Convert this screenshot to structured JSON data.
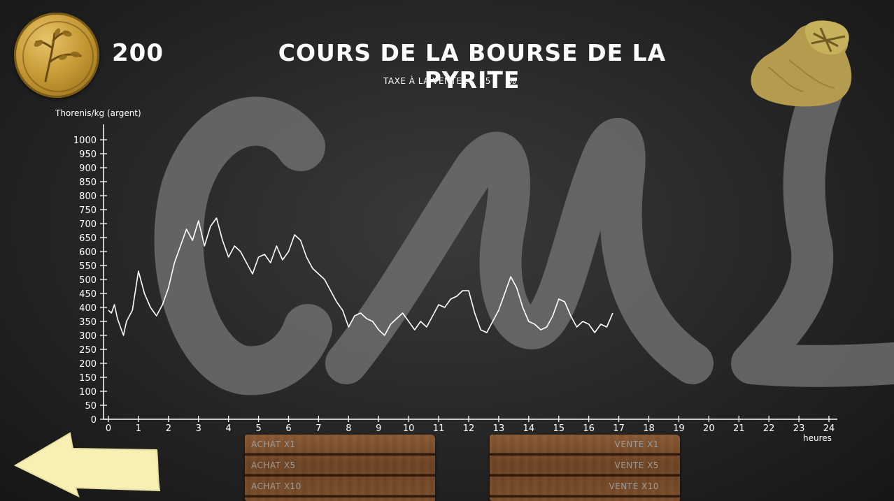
{
  "header": {
    "money": "200",
    "title": "Cours de la bourse de la Pyrite",
    "tax_label": "Taxe à la vente :",
    "tax_value": "35",
    "tax_unit": "%"
  },
  "icons": {
    "coin": "silver-coin-icon",
    "bag": "gold-sack-icon",
    "back": "back-arrow-icon"
  },
  "buy_buttons": [
    "Achat x1",
    "Achat x5",
    "Achat x10"
  ],
  "sell_buttons": [
    "Vente x1",
    "Vente x5",
    "Vente x10"
  ],
  "colors": {
    "background": "#262626",
    "chalk": "#6d6d6d",
    "line": "#ffffff",
    "arrow": "#f7f0b5",
    "coin": "#c79b36",
    "wood": "#7b4e2b"
  },
  "chart_data": {
    "type": "line",
    "ylabel": "Thorenis/kg (argent)",
    "xlabel": "heures",
    "xlim": [
      0,
      24
    ],
    "ylim": [
      0,
      1000
    ],
    "x_ticks": [
      0,
      1,
      2,
      3,
      4,
      5,
      6,
      7,
      8,
      9,
      10,
      11,
      12,
      13,
      14,
      15,
      16,
      17,
      18,
      19,
      20,
      21,
      22,
      23,
      24
    ],
    "y_ticks": [
      0,
      50,
      100,
      150,
      200,
      250,
      300,
      350,
      400,
      450,
      500,
      550,
      600,
      650,
      700,
      750,
      800,
      850,
      900,
      950,
      1000
    ],
    "series": [
      {
        "x": [
          0,
          0.1,
          0.2,
          0.3,
          0.5,
          0.6,
          0.8,
          1.0,
          1.2,
          1.4,
          1.6,
          1.8,
          2.0,
          2.2,
          2.4,
          2.6,
          2.8,
          3.0,
          3.2,
          3.4,
          3.6,
          3.8,
          4.0,
          4.2,
          4.4,
          4.6,
          4.8,
          5.0,
          5.2,
          5.4,
          5.6,
          5.8,
          6.0,
          6.2,
          6.4,
          6.6,
          6.8,
          7.0,
          7.2,
          7.4,
          7.6,
          7.8,
          8.0,
          8.2,
          8.4,
          8.6,
          8.8,
          9.0,
          9.2,
          9.4,
          9.6,
          9.8,
          10.0,
          10.2,
          10.4,
          10.6,
          10.8,
          11.0,
          11.2,
          11.4,
          11.6,
          11.8,
          12.0,
          12.2,
          12.4,
          12.6,
          12.8,
          13.0,
          13.2,
          13.4,
          13.6,
          13.8,
          14.0,
          14.2,
          14.4,
          14.6,
          14.8,
          15.0,
          15.2,
          15.4,
          15.6,
          15.8,
          16.0,
          16.2,
          16.4,
          16.6,
          16.8
        ],
        "y": [
          390,
          380,
          410,
          360,
          300,
          350,
          390,
          530,
          450,
          400,
          370,
          410,
          470,
          560,
          620,
          680,
          640,
          710,
          620,
          690,
          720,
          640,
          580,
          620,
          600,
          560,
          520,
          580,
          590,
          560,
          620,
          570,
          600,
          660,
          640,
          580,
          540,
          520,
          500,
          460,
          420,
          390,
          330,
          370,
          380,
          360,
          350,
          320,
          300,
          340,
          360,
          380,
          350,
          320,
          350,
          330,
          370,
          410,
          400,
          430,
          440,
          460,
          460,
          380,
          320,
          310,
          350,
          390,
          450,
          510,
          470,
          400,
          350,
          340,
          320,
          330,
          370,
          430,
          420,
          370,
          330,
          350,
          340,
          310,
          340,
          330,
          380
        ]
      }
    ]
  }
}
